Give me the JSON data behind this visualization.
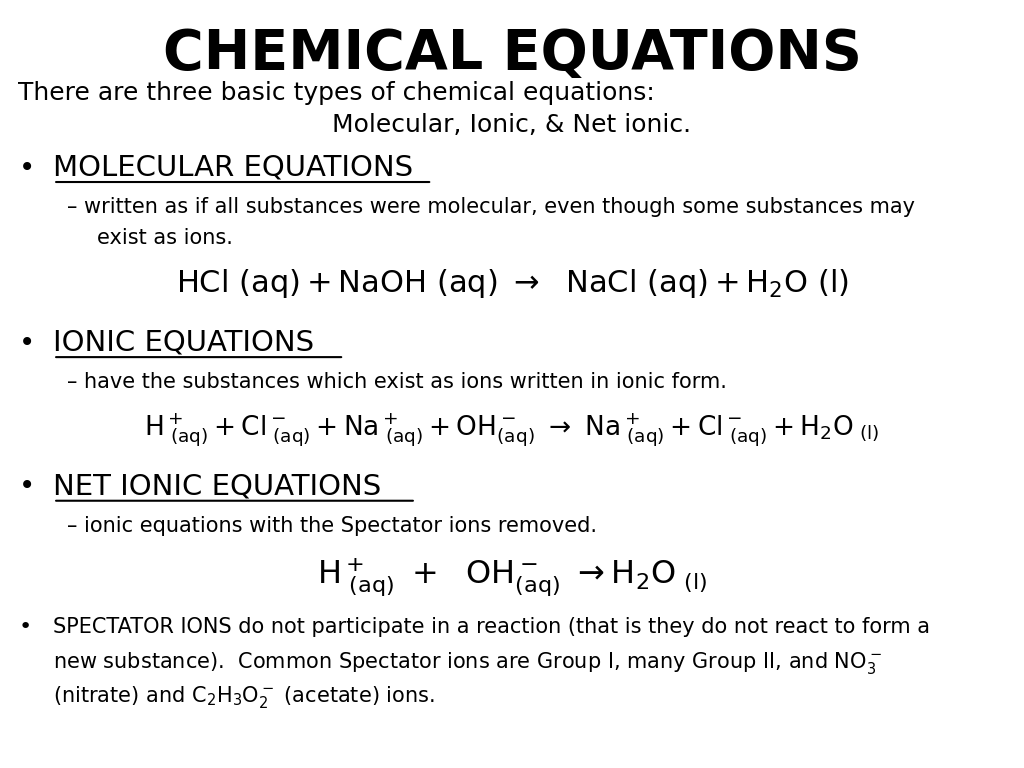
{
  "title": "CHEMICAL EQUATIONS",
  "subtitle_line1": "There are three basic types of chemical equations:",
  "subtitle_line2": "Molecular, Ionic, & Net ionic.",
  "bg_color": "#ffffff",
  "text_color": "#000000",
  "title_fontsize": 40,
  "subtitle_fontsize": 18,
  "heading_fontsize": 21,
  "body_fontsize": 15,
  "eq_fontsize": 22,
  "ionic_eq_fontsize": 19,
  "net_eq_fontsize": 23,
  "spectator_fontsize": 15
}
